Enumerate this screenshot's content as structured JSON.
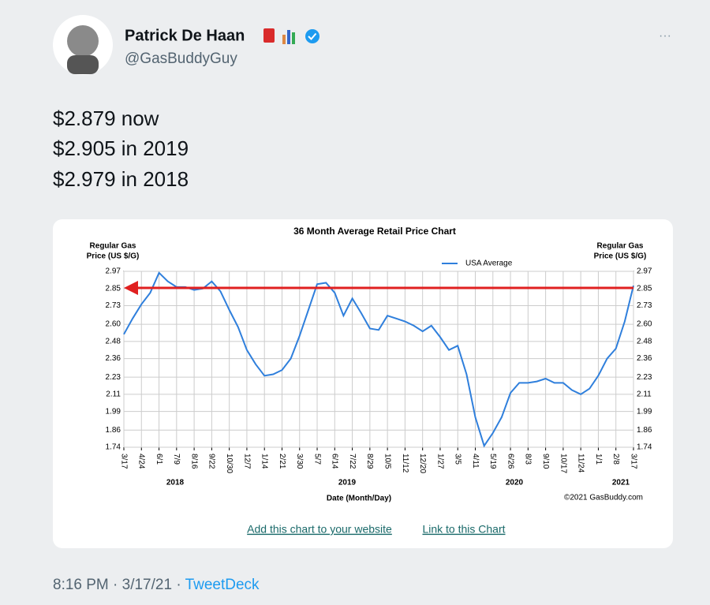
{
  "tweet": {
    "name": "Patrick De Haan",
    "handle": "@GasBuddyGuy",
    "text": [
      "$2.879 now",
      "$2.905 in 2019",
      "$2.979 in 2018"
    ],
    "time": "8:16 PM · 3/17/21 · ",
    "source": "TweetDeck",
    "links": [
      "Add this chart to your website",
      "Link to this Chart"
    ]
  },
  "chart_data": {
    "type": "line",
    "title": "36 Month Average Retail Price Chart",
    "y_label": [
      "Regular Gas",
      "Price (US $/G)"
    ],
    "y2_label": [
      "Regular Gas",
      "Price (US $/G)"
    ],
    "x_label": "Date (Month/Day)",
    "credit": "©2021 GasBuddy.com",
    "year_labels": [
      "2018",
      "2019",
      "2020",
      "2021"
    ],
    "categories": [
      "3/17",
      null,
      "4/24",
      null,
      "6/1",
      null,
      "7/9",
      null,
      "8/16",
      null,
      "9/22",
      null,
      "10/30",
      null,
      "12/7",
      null,
      "1/14",
      null,
      "2/21",
      null,
      "3/30",
      null,
      "5/7",
      null,
      "6/14",
      null,
      "7/22",
      null,
      "8/29",
      null,
      "10/5",
      null,
      "11/12",
      null,
      "12/20",
      null,
      "1/27",
      null,
      "3/5",
      null,
      "4/11",
      null,
      "5/19",
      null,
      "6/26",
      null,
      "8/3",
      null,
      "9/10",
      null,
      "10/17",
      null,
      "11/24",
      null,
      "1/1",
      null,
      "2/8",
      null,
      "3/17"
    ],
    "series": [
      {
        "name": "USA Average",
        "color": "#2f7fdc",
        "values": [
          2.53,
          2.64,
          2.74,
          2.82,
          2.96,
          2.9,
          2.86,
          2.86,
          2.84,
          2.85,
          2.9,
          2.83,
          2.7,
          2.58,
          2.42,
          2.32,
          2.24,
          2.25,
          2.28,
          2.36,
          2.52,
          2.7,
          2.88,
          2.89,
          2.82,
          2.66,
          2.78,
          2.68,
          2.57,
          2.56,
          2.66,
          2.64,
          2.62,
          2.59,
          2.55,
          2.59,
          2.51,
          2.42,
          2.45,
          2.25,
          1.95,
          1.75,
          1.84,
          1.95,
          2.12,
          2.19,
          2.19,
          2.2,
          2.22,
          2.19,
          2.19,
          2.14,
          2.11,
          2.15,
          2.24,
          2.36,
          2.43,
          2.62,
          2.87
        ]
      }
    ],
    "ylim": [
      1.74,
      2.97
    ],
    "yticks": [
      1.74,
      1.86,
      1.99,
      2.11,
      2.23,
      2.36,
      2.48,
      {
        "value": 2.6,
        "label": "2.60"
      },
      2.73,
      2.85,
      2.97
    ],
    "grid": true,
    "legend": "top"
  }
}
